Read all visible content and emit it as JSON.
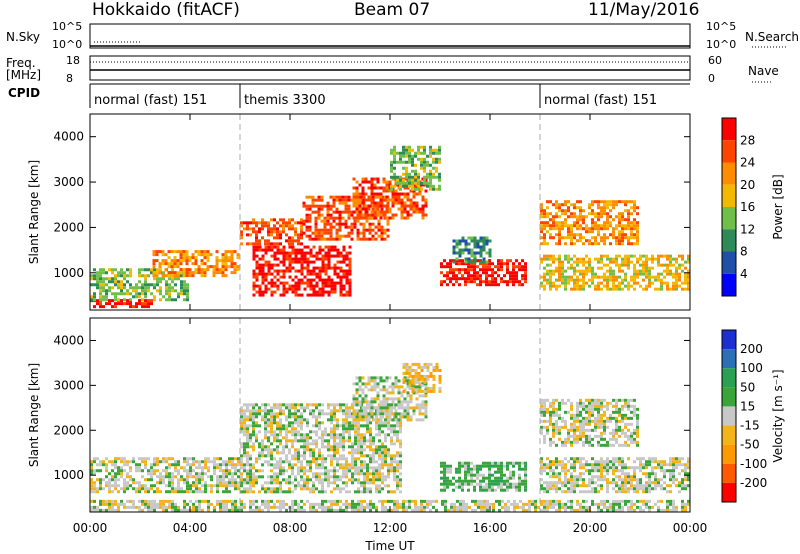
{
  "header": {
    "station": "Hokkaido (fitACF)",
    "beam": "Beam 07",
    "date": "11/May/2016"
  },
  "status_panels": {
    "nsky": {
      "label": "N.Sky",
      "ticks": [
        "10^5",
        "10^0"
      ]
    },
    "nsearch": {
      "label": "N.Search",
      "ticks": [
        "10^5",
        "10^0"
      ]
    },
    "freq": {
      "label_line1": "Freq.",
      "label_line2": "[MHz]",
      "ticks": [
        "18",
        "8"
      ]
    },
    "nave": {
      "label": "Nave",
      "ticks": [
        "60",
        "0"
      ]
    },
    "cpid": {
      "label": "CPID",
      "segments": [
        {
          "name": "normal (fast) 151",
          "start_hour": 0
        },
        {
          "name": "themis 3300",
          "start_hour": 6
        },
        {
          "name": "normal (fast) 151",
          "start_hour": 18
        }
      ]
    }
  },
  "colors": {
    "power": [
      "#0000ff",
      "#1f4fa8",
      "#2e8b57",
      "#6fbf4a",
      "#f5b800",
      "#ff8c00",
      "#ff4500",
      "#ff0000"
    ],
    "velocity": [
      "#ff0000",
      "#ff5a00",
      "#ff9900",
      "#f2b418",
      "#c8c8c8",
      "#3aa53a",
      "#2aa052",
      "#2b6fb5",
      "#1c2fd0"
    ]
  },
  "chart_data": [
    {
      "type": "heatmap",
      "panel": "power",
      "xlabel": "",
      "ylabel": "Slant Range [km]",
      "x_ticks": [
        "00:00",
        "04:00",
        "08:00",
        "12:00",
        "16:00",
        "20:00",
        "00:00"
      ],
      "y_ticks": [
        1000,
        2000,
        3000,
        4000
      ],
      "ylim": [
        180,
        4500
      ],
      "xlim_hours": [
        0,
        24
      ],
      "colorbar": {
        "label": "Power [dB]",
        "ticks": [
          4,
          8,
          12,
          16,
          20,
          24,
          28
        ]
      },
      "regions": [
        {
          "t": [
            0.0,
            2.5
          ],
          "r": [
            250,
            420
          ],
          "level": 7
        },
        {
          "t": [
            0.0,
            4.0
          ],
          "r": [
            400,
            1100
          ],
          "level": 3
        },
        {
          "t": [
            2.5,
            6.0
          ],
          "r": [
            900,
            1500
          ],
          "level": 5
        },
        {
          "t": [
            6.0,
            8.5
          ],
          "r": [
            1600,
            2200
          ],
          "level": 6
        },
        {
          "t": [
            6.5,
            10.5
          ],
          "r": [
            500,
            1600
          ],
          "level": 7
        },
        {
          "t": [
            8.5,
            12.0
          ],
          "r": [
            1700,
            2700
          ],
          "level": 6
        },
        {
          "t": [
            10.5,
            13.5
          ],
          "r": [
            2200,
            3100
          ],
          "level": 6
        },
        {
          "t": [
            12.0,
            14.0
          ],
          "r": [
            2800,
            3800
          ],
          "level": 3
        },
        {
          "t": [
            14.0,
            17.5
          ],
          "r": [
            700,
            1300
          ],
          "level": 7
        },
        {
          "t": [
            14.5,
            16.0
          ],
          "r": [
            1200,
            1800
          ],
          "level": 2
        },
        {
          "t": [
            18.0,
            22.0
          ],
          "r": [
            1600,
            2600
          ],
          "level": 5
        },
        {
          "t": [
            18.0,
            24.0
          ],
          "r": [
            600,
            1400
          ],
          "level": 4
        }
      ]
    },
    {
      "type": "heatmap",
      "panel": "velocity",
      "xlabel": "Time UT",
      "ylabel": "Slant Range [km]",
      "x_ticks": [
        "00:00",
        "04:00",
        "08:00",
        "12:00",
        "16:00",
        "20:00",
        "00:00"
      ],
      "y_ticks": [
        1000,
        2000,
        3000,
        4000
      ],
      "ylim": [
        180,
        4500
      ],
      "xlim_hours": [
        0,
        24
      ],
      "colorbar": {
        "label": "Velocity [m s⁻¹]",
        "ticks": [
          200,
          100,
          50,
          15,
          -15,
          -50,
          -100,
          -200
        ]
      },
      "regions": [
        {
          "t": [
            0.0,
            24.0
          ],
          "r": [
            200,
            450
          ],
          "level": 4
        },
        {
          "t": [
            0.0,
            6.0
          ],
          "r": [
            600,
            1400
          ],
          "level": 4
        },
        {
          "t": [
            6.0,
            12.5
          ],
          "r": [
            600,
            2600
          ],
          "level": 4
        },
        {
          "t": [
            10.5,
            13.5
          ],
          "r": [
            2200,
            3200
          ],
          "level": 4
        },
        {
          "t": [
            12.5,
            14.0
          ],
          "r": [
            2800,
            3500
          ],
          "level": 3
        },
        {
          "t": [
            14.0,
            17.5
          ],
          "r": [
            600,
            1300
          ],
          "level": 5
        },
        {
          "t": [
            18.0,
            22.0
          ],
          "r": [
            1600,
            2700
          ],
          "level": 4
        },
        {
          "t": [
            18.0,
            24.0
          ],
          "r": [
            600,
            1400
          ],
          "level": 4
        }
      ]
    }
  ]
}
